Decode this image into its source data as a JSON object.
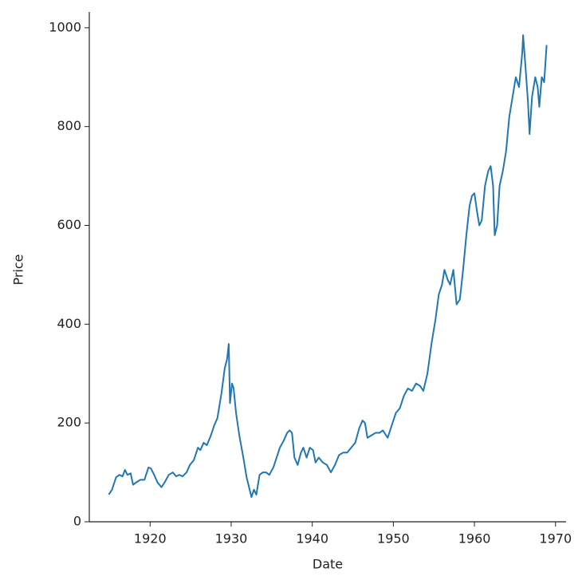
{
  "chart_data": {
    "type": "line",
    "xlabel": "Date",
    "ylabel": "Price",
    "x": [
      1914.9,
      1915.3,
      1915.8,
      1916.2,
      1916.6,
      1916.9,
      1917.2,
      1917.6,
      1917.9,
      1918.3,
      1918.8,
      1919.3,
      1919.8,
      1920.1,
      1920.5,
      1920.9,
      1921.4,
      1921.8,
      1922.3,
      1922.8,
      1923.2,
      1923.6,
      1924.0,
      1924.5,
      1924.9,
      1925.4,
      1925.9,
      1926.2,
      1926.6,
      1927.0,
      1927.5,
      1927.9,
      1928.3,
      1928.8,
      1929.2,
      1929.5,
      1929.7,
      1929.85,
      1930.1,
      1930.3,
      1930.6,
      1931.0,
      1931.5,
      1931.9,
      1932.2,
      1932.5,
      1932.8,
      1933.1,
      1933.5,
      1933.9,
      1934.3,
      1934.7,
      1935.2,
      1935.6,
      1936.0,
      1936.5,
      1936.9,
      1937.2,
      1937.5,
      1937.8,
      1938.2,
      1938.6,
      1938.9,
      1939.3,
      1939.7,
      1940.1,
      1940.4,
      1940.8,
      1941.3,
      1941.8,
      1942.3,
      1942.8,
      1943.3,
      1943.8,
      1944.3,
      1944.8,
      1945.3,
      1945.8,
      1946.2,
      1946.5,
      1946.8,
      1947.3,
      1947.8,
      1948.3,
      1948.7,
      1949.3,
      1949.8,
      1950.3,
      1950.8,
      1951.3,
      1951.8,
      1952.3,
      1952.8,
      1953.3,
      1953.7,
      1954.2,
      1954.7,
      1955.2,
      1955.6,
      1956.0,
      1956.3,
      1956.7,
      1957.0,
      1957.4,
      1957.8,
      1958.2,
      1958.6,
      1959.0,
      1959.4,
      1959.7,
      1960.0,
      1960.3,
      1960.6,
      1960.9,
      1961.3,
      1961.7,
      1962.0,
      1962.3,
      1962.5,
      1962.8,
      1963.1,
      1963.5,
      1963.9,
      1964.3,
      1964.7,
      1965.1,
      1965.5,
      1965.9,
      1966.0,
      1966.3,
      1966.6,
      1966.8,
      1967.1,
      1967.5,
      1967.8,
      1968.0,
      1968.3,
      1968.6,
      1968.9
    ],
    "series": [
      {
        "name": "Price",
        "color": "#1f77b4",
        "values": [
          55,
          65,
          90,
          95,
          92,
          105,
          95,
          98,
          75,
          80,
          85,
          85,
          110,
          108,
          95,
          80,
          70,
          80,
          95,
          100,
          92,
          95,
          92,
          100,
          115,
          125,
          150,
          145,
          160,
          155,
          175,
          195,
          210,
          260,
          310,
          330,
          360,
          240,
          280,
          270,
          220,
          175,
          130,
          90,
          70,
          50,
          65,
          55,
          95,
          100,
          100,
          95,
          110,
          130,
          150,
          165,
          180,
          185,
          180,
          130,
          115,
          140,
          150,
          130,
          150,
          145,
          120,
          130,
          120,
          115,
          100,
          115,
          135,
          140,
          140,
          150,
          160,
          190,
          205,
          200,
          170,
          175,
          180,
          180,
          185,
          170,
          195,
          220,
          230,
          255,
          270,
          265,
          280,
          275,
          265,
          300,
          360,
          410,
          460,
          480,
          510,
          490,
          480,
          510,
          440,
          450,
          510,
          580,
          640,
          660,
          665,
          630,
          600,
          610,
          680,
          710,
          720,
          680,
          580,
          600,
          680,
          710,
          750,
          820,
          860,
          900,
          880,
          950,
          985,
          920,
          850,
          785,
          860,
          900,
          880,
          840,
          900,
          890,
          965
        ]
      }
    ],
    "xlim": [
      1912.5,
      1971.3
    ],
    "ylim": [
      0,
      1032
    ],
    "xticks": [
      1920,
      1930,
      1940,
      1950,
      1960,
      1970
    ],
    "yticks": [
      0,
      200,
      400,
      600,
      800,
      1000
    ]
  }
}
